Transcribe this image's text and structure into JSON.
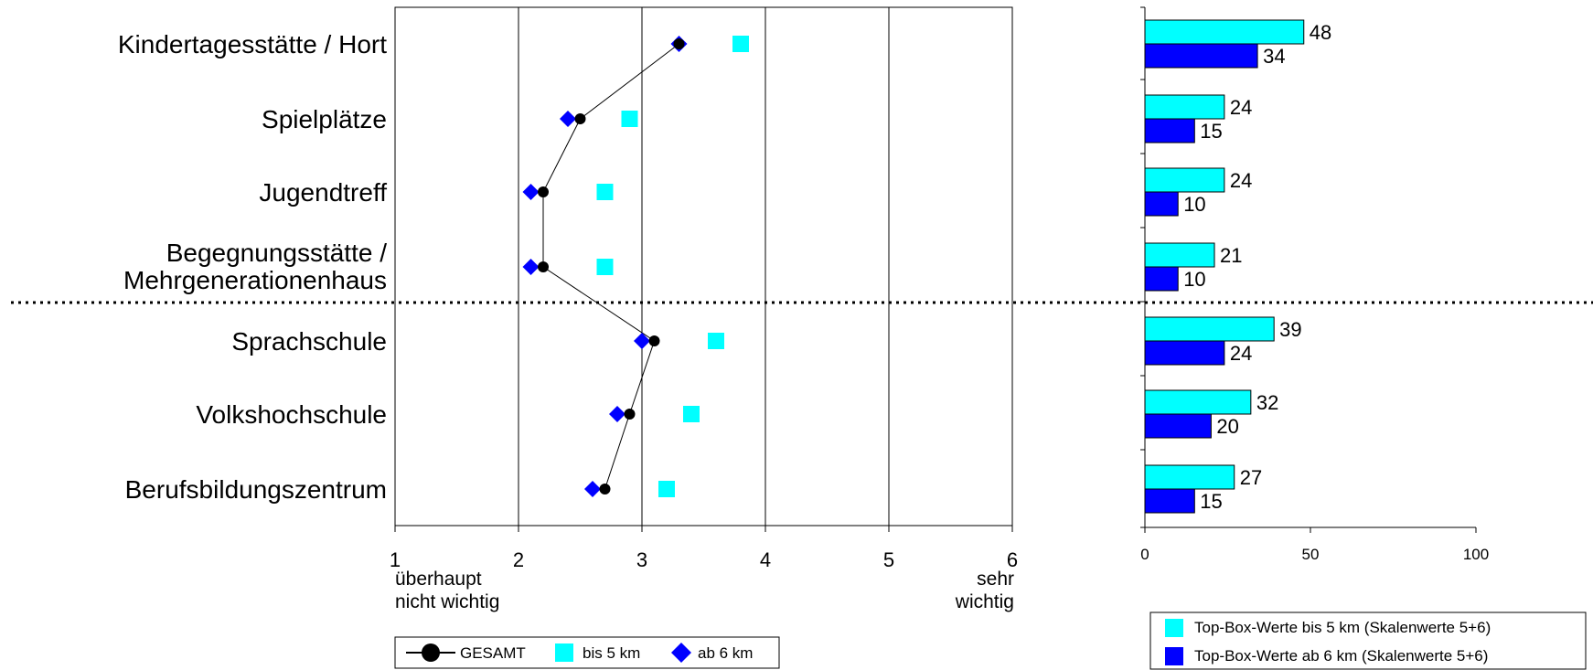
{
  "colors": {
    "cyan": "#00ffff",
    "blue": "#0000ff",
    "black": "#000000"
  },
  "dot_plot": {
    "scale_low_label": [
      "überhaupt",
      "nicht wichtig"
    ],
    "scale_high_label": [
      "sehr",
      "wichtig"
    ]
  },
  "chart_data": [
    {
      "type": "scatter",
      "categories": [
        [
          "Kindertagesstätte / Hort"
        ],
        [
          "Spielplätze"
        ],
        [
          "Jugendtreff"
        ],
        [
          "Begegnungsstätte /",
          "Mehrgenerationenhaus"
        ],
        [
          "Sprachschule"
        ],
        [
          "Volkshochschule"
        ],
        [
          "Berufsbildungszentrum"
        ]
      ],
      "xlim": [
        1,
        6
      ],
      "xticks": [
        "1",
        "2",
        "3",
        "4",
        "5",
        "6"
      ],
      "grid": true,
      "series": [
        {
          "name": "GESAMT",
          "marker": "circle",
          "color": "#000000",
          "connected": true,
          "values": [
            3.3,
            2.5,
            2.2,
            2.2,
            3.1,
            2.9,
            2.7
          ]
        },
        {
          "name": "bis 5 km",
          "marker": "square",
          "color": "#00ffff",
          "connected": false,
          "values": [
            3.8,
            2.9,
            2.7,
            2.7,
            3.6,
            3.4,
            3.2
          ]
        },
        {
          "name": "ab 6 km",
          "marker": "diamond",
          "color": "#0000ff",
          "connected": false,
          "values": [
            3.3,
            2.4,
            2.1,
            2.1,
            3.0,
            2.8,
            2.6
          ]
        }
      ]
    },
    {
      "type": "bar",
      "orientation": "horizontal",
      "xlim": [
        0,
        100
      ],
      "xticks": [
        "0",
        "50",
        "100"
      ],
      "series": [
        {
          "name": "Top-Box-Werte bis 5 km (Skalenwerte 5+6)",
          "color": "#00ffff",
          "values": [
            48,
            24,
            24,
            21,
            39,
            32,
            27
          ]
        },
        {
          "name": "Top-Box-Werte ab 6 km (Skalenwerte 5+6)",
          "color": "#0000ff",
          "values": [
            34,
            15,
            10,
            10,
            24,
            20,
            15
          ]
        }
      ]
    }
  ]
}
